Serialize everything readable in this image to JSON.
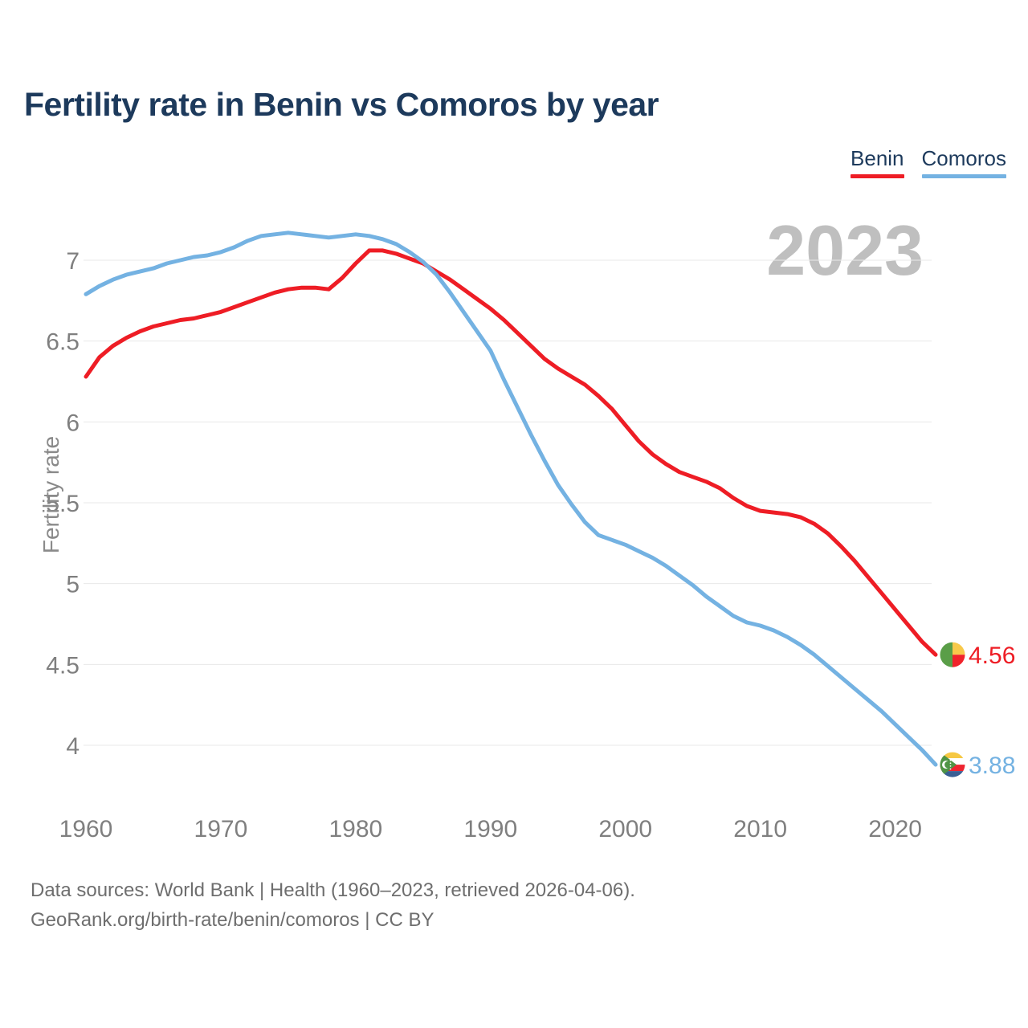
{
  "title": "Fertility rate in Benin vs Comoros by year",
  "watermark": "2023",
  "legend": [
    {
      "label": "Benin",
      "color": "#ee1d25"
    },
    {
      "label": "Comoros",
      "color": "#74b2e2"
    }
  ],
  "footer": {
    "line1": "Data sources: World Bank | Health (1960–2023, retrieved 2026-04-06).",
    "line2": "GeoRank.org/birth-rate/benin/comoros | CC BY"
  },
  "chart_data": {
    "type": "line",
    "title": "Fertility rate in Benin vs Comoros by year",
    "xlabel": "",
    "ylabel": "Fertility rate",
    "grid": true,
    "legend_position": "top-right",
    "x_range": [
      1960,
      2023
    ],
    "ylim": [
      3.7,
      7.3
    ],
    "yticks": [
      4,
      4.5,
      5,
      5.5,
      6,
      6.5,
      7
    ],
    "xticks": [
      1960,
      1970,
      1980,
      1990,
      2000,
      2010,
      2020
    ],
    "years": [
      1960,
      1961,
      1962,
      1963,
      1964,
      1965,
      1966,
      1967,
      1968,
      1969,
      1970,
      1971,
      1972,
      1973,
      1974,
      1975,
      1976,
      1977,
      1978,
      1979,
      1980,
      1981,
      1982,
      1983,
      1984,
      1985,
      1986,
      1987,
      1988,
      1989,
      1990,
      1991,
      1992,
      1993,
      1994,
      1995,
      1996,
      1997,
      1998,
      1999,
      2000,
      2001,
      2002,
      2003,
      2004,
      2005,
      2006,
      2007,
      2008,
      2009,
      2010,
      2011,
      2012,
      2013,
      2014,
      2015,
      2016,
      2017,
      2018,
      2019,
      2020,
      2021,
      2022,
      2023
    ],
    "series": [
      {
        "name": "Benin",
        "color": "#ee1d25",
        "end_label": "4.56",
        "end_value": 4.56,
        "values": [
          6.28,
          6.4,
          6.47,
          6.52,
          6.56,
          6.59,
          6.61,
          6.63,
          6.64,
          6.66,
          6.68,
          6.71,
          6.74,
          6.77,
          6.8,
          6.82,
          6.83,
          6.83,
          6.82,
          6.89,
          6.98,
          7.06,
          7.06,
          7.04,
          7.01,
          6.98,
          6.93,
          6.88,
          6.82,
          6.76,
          6.7,
          6.63,
          6.55,
          6.47,
          6.39,
          6.33,
          6.28,
          6.23,
          6.16,
          6.08,
          5.98,
          5.88,
          5.8,
          5.74,
          5.69,
          5.66,
          5.63,
          5.59,
          5.53,
          5.48,
          5.45,
          5.44,
          5.43,
          5.41,
          5.37,
          5.31,
          5.23,
          5.14,
          5.04,
          4.94,
          4.84,
          4.74,
          4.64,
          4.56
        ]
      },
      {
        "name": "Comoros",
        "color": "#74b2e2",
        "end_label": "3.88",
        "end_value": 3.88,
        "values": [
          6.79,
          6.84,
          6.88,
          6.91,
          6.93,
          6.95,
          6.98,
          7.0,
          7.02,
          7.03,
          7.05,
          7.08,
          7.12,
          7.15,
          7.16,
          7.17,
          7.16,
          7.15,
          7.14,
          7.15,
          7.16,
          7.15,
          7.13,
          7.1,
          7.05,
          6.99,
          6.91,
          6.8,
          6.68,
          6.56,
          6.44,
          6.26,
          6.09,
          5.92,
          5.76,
          5.61,
          5.49,
          5.38,
          5.3,
          5.27,
          5.24,
          5.2,
          5.16,
          5.11,
          5.05,
          4.99,
          4.92,
          4.86,
          4.8,
          4.76,
          4.74,
          4.71,
          4.67,
          4.62,
          4.56,
          4.49,
          4.42,
          4.35,
          4.28,
          4.21,
          4.13,
          4.05,
          3.97,
          3.88
        ]
      }
    ]
  }
}
